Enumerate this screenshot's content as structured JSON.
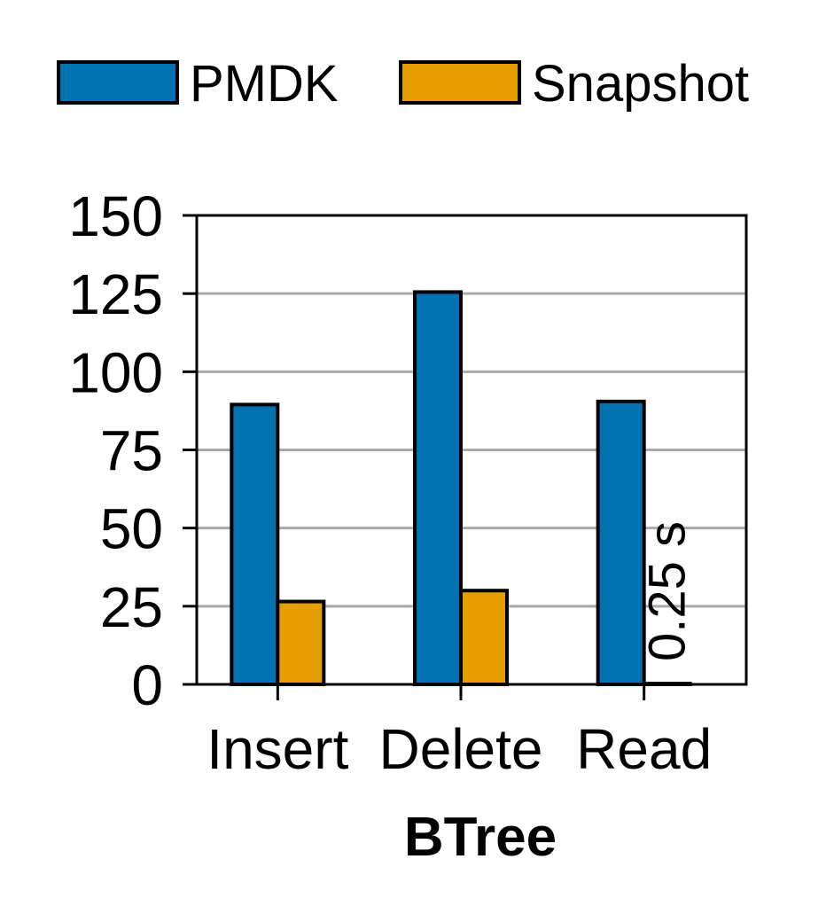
{
  "chart_data": {
    "type": "bar",
    "title": "",
    "xlabel": "BTree",
    "ylabel": "",
    "ylim": [
      0,
      150
    ],
    "yticks": [
      0,
      25,
      50,
      75,
      100,
      125,
      150
    ],
    "grid": true,
    "legend_position": "top",
    "categories": [
      "Insert",
      "Delete",
      "Read"
    ],
    "series": [
      {
        "name": "PMDK",
        "color": "#0072b2",
        "values": [
          89.5,
          125.5,
          90.5
        ]
      },
      {
        "name": "Snapshot",
        "color": "#e69f00",
        "values": [
          26.5,
          30,
          0.25
        ]
      }
    ],
    "annotations": [
      {
        "text": "0.25 s",
        "category": "Read",
        "series": "Snapshot",
        "orientation": "vertical"
      }
    ]
  }
}
